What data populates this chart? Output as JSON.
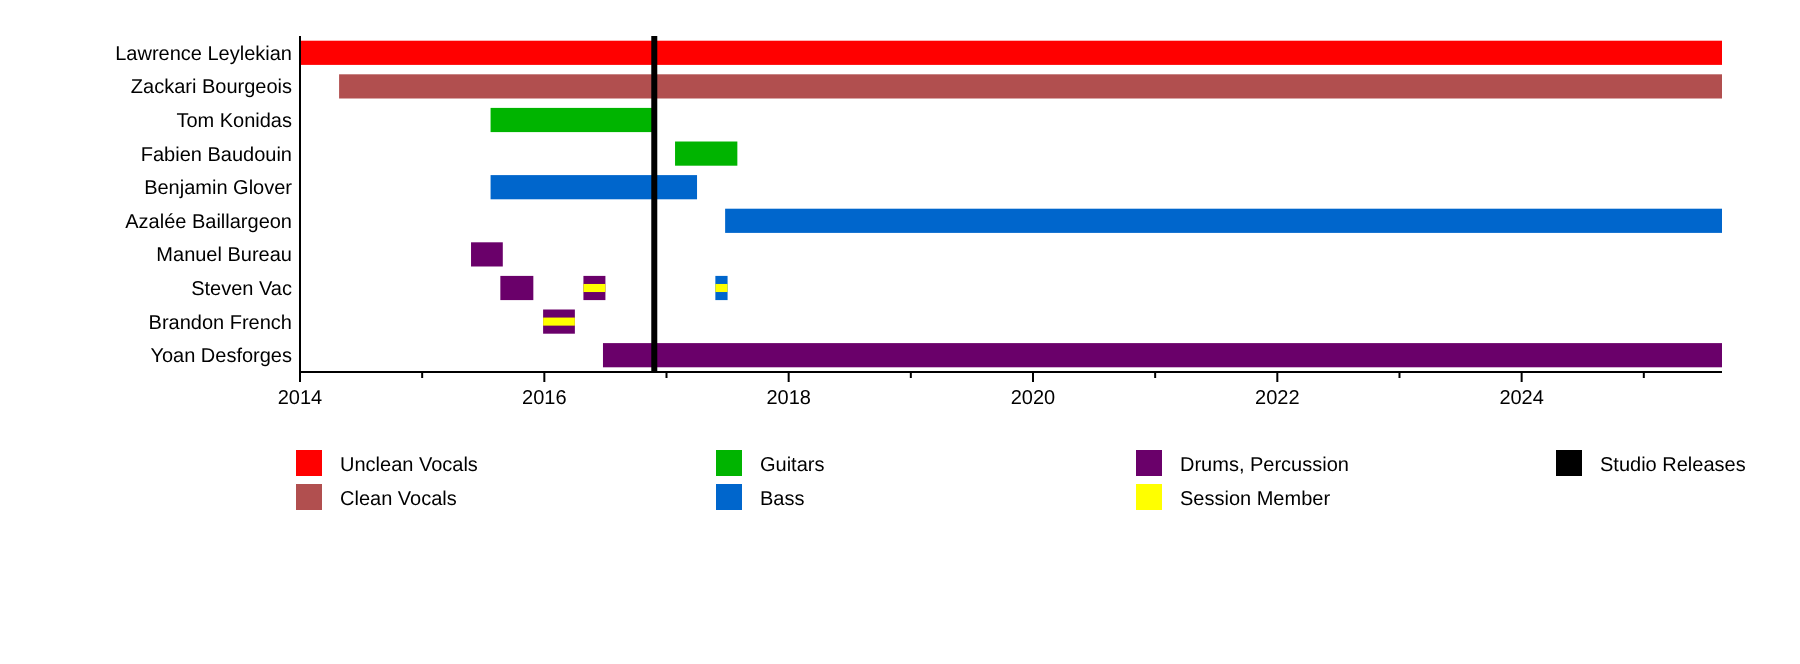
{
  "chart_data": {
    "type": "bar",
    "orientation": "horizontal",
    "categories": [
      "Lawrence Leylekian",
      "Zackari Bourgeois",
      "Tom Konidas",
      "Fabien Baudouin",
      "Benjamin Glover",
      "Azalée Baillargeon",
      "Manuel Bureau",
      "Steven Vac",
      "Brandon French",
      "Yoan Desforges"
    ],
    "series": [
      {
        "name": "Unclean Vocals",
        "color": "#ff0000",
        "base": [
          2014,
          null,
          null,
          null,
          null,
          null,
          null,
          null,
          null,
          null
        ],
        "values": [
          11.64,
          null,
          null,
          null,
          null,
          null,
          null,
          null,
          null,
          null
        ]
      },
      {
        "name": "Clean Vocals",
        "color": "#b14f4f",
        "base": [
          null,
          2014.32,
          null,
          null,
          null,
          null,
          null,
          null,
          null,
          null
        ],
        "values": [
          null,
          11.32,
          null,
          null,
          null,
          null,
          null,
          null,
          null,
          null
        ]
      },
      {
        "name": "Guitars",
        "color": "#00b400",
        "base": [
          null,
          null,
          2015.56,
          2017.07,
          null,
          null,
          null,
          null,
          null,
          null
        ],
        "values": [
          null,
          null,
          1.35,
          0.51,
          null,
          null,
          null,
          null,
          null,
          null
        ]
      },
      {
        "name": "Bass",
        "color": "#0066cc",
        "base": [
          null,
          null,
          null,
          null,
          2015.56,
          2017.48,
          null,
          2017.4,
          null,
          null
        ],
        "values": [
          null,
          null,
          null,
          null,
          1.69,
          8.16,
          null,
          0.1,
          null,
          null
        ]
      },
      {
        "name": "Drums, Percussion",
        "color": "#6a006a",
        "base": [
          null,
          null,
          null,
          null,
          null,
          null,
          2015.4,
          2015.64,
          2015.99,
          2016.48
        ],
        "values": [
          null,
          null,
          null,
          null,
          null,
          null,
          0.26,
          0.27,
          0.26,
          9.16
        ]
      },
      {
        "color": "#6a006a",
        "base": [
          null,
          null,
          null,
          null,
          null,
          null,
          null,
          2016.32,
          null,
          null
        ],
        "values": [
          null,
          null,
          null,
          null,
          null,
          null,
          null,
          0.18,
          null,
          null
        ]
      },
      {
        "name": "Session Member",
        "color": "#ffff00",
        "base": [
          null,
          null,
          null,
          null,
          null,
          null,
          null,
          2016.32,
          2015.99,
          null
        ],
        "values": [
          null,
          null,
          null,
          null,
          null,
          null,
          null,
          0.18,
          0.26,
          null
        ]
      },
      {
        "color": "#ffff00",
        "base": [
          null,
          null,
          null,
          null,
          null,
          null,
          null,
          2017.4,
          null,
          null
        ],
        "values": [
          null,
          null,
          null,
          null,
          null,
          null,
          null,
          0.1,
          null,
          null
        ]
      }
    ],
    "ref_lines": [
      {
        "axis": "x",
        "value": 2016.9,
        "label": "Studio Releases",
        "color": "#000000"
      }
    ],
    "xlim": [
      2014,
      2025.64
    ],
    "xticks": [
      2014,
      {
        "value": 2015,
        "label": null
      },
      2016,
      {
        "value": 2017,
        "label": null
      },
      2018,
      {
        "value": 2019,
        "label": null
      },
      2020,
      {
        "value": 2021,
        "label": null
      },
      2022,
      {
        "value": 2023,
        "label": null
      },
      2024,
      {
        "value": 2025,
        "label": null
      }
    ],
    "legend": "bottom",
    "grid": false
  }
}
